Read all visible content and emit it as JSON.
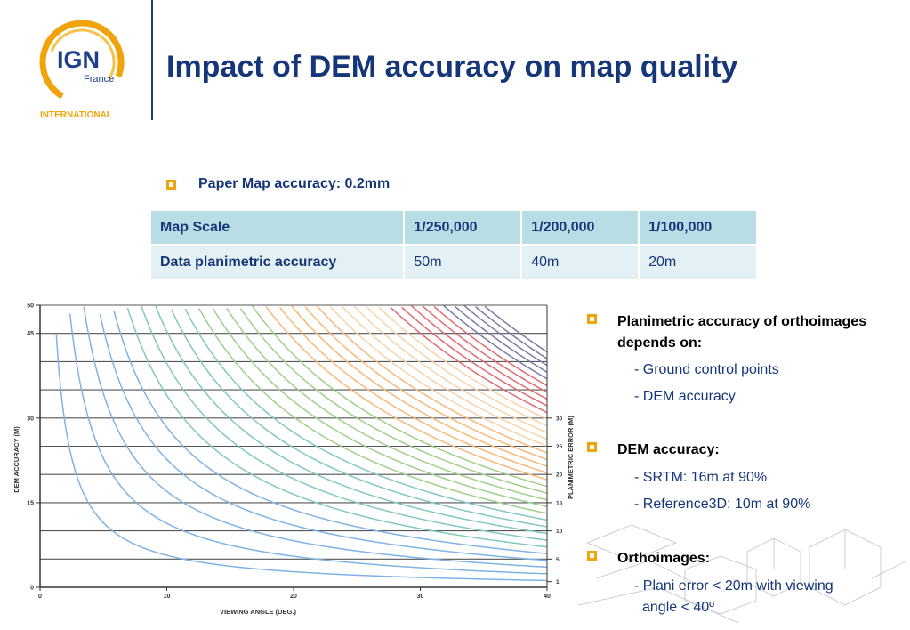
{
  "logo": {
    "brand": "IGN",
    "sub": "France",
    "tagline": "INTERNATIONAL"
  },
  "title": "Impact of DEM accuracy on map quality",
  "paper_bullet": "Paper Map accuracy: 0.2mm",
  "table": {
    "header": [
      "Map Scale",
      "1/250,000",
      "1/200,000",
      "1/100,000"
    ],
    "row": [
      "Data planimetric accuracy",
      "50m",
      "40m",
      "20m"
    ]
  },
  "right_bullets": [
    {
      "label_line1": "Planimetric accuracy of orthoimages",
      "label_line2": "depends on:",
      "items": [
        "Ground control points",
        "DEM accuracy"
      ]
    },
    {
      "label": "DEM accuracy:",
      "items": [
        "SRTM: 16m at 90%",
        "Reference3D: 10m at 90%"
      ]
    },
    {
      "label": "Orthoimages:",
      "items": [
        "Plani error < 20m with viewing",
        "angle < 40º"
      ]
    }
  ],
  "colors": {
    "accent": "#f0a30a",
    "navy": "#16367a",
    "table_head": "#b8dde4",
    "table_row": "#e3f1f4"
  },
  "chart_data": {
    "type": "line",
    "title": "",
    "xlabel": "VIEWING ANGLE (DEG.)",
    "ylabel": "DEM ACCURACY (M)",
    "y2label": "PLANIMETRIC ERROR (M)",
    "xlim": [
      0,
      40
    ],
    "ylim": [
      0,
      50
    ],
    "x_ticks": [
      0,
      10,
      20,
      30,
      40
    ],
    "y_ticks": [
      0,
      15,
      30,
      45,
      50
    ],
    "y2_ticks": [
      1,
      5,
      10,
      15,
      20,
      25,
      30
    ],
    "relation": "planimetric error = DEM accuracy × tan(viewing angle)",
    "series": [
      {
        "planimetric_error": 1,
        "color": "#7fb2e5"
      },
      {
        "planimetric_error": 2,
        "color": "#7fb2e5"
      },
      {
        "planimetric_error": 3,
        "color": "#7fb2e5"
      },
      {
        "planimetric_error": 4,
        "color": "#7fb2e5"
      },
      {
        "planimetric_error": 5,
        "color": "#7fb2e5"
      },
      {
        "planimetric_error": 6,
        "color": "#80c8c0"
      },
      {
        "planimetric_error": 7,
        "color": "#80c8c0"
      },
      {
        "planimetric_error": 8,
        "color": "#80c8c0"
      },
      {
        "planimetric_error": 9,
        "color": "#80c8c0"
      },
      {
        "planimetric_error": 10,
        "color": "#80c8c0"
      },
      {
        "planimetric_error": 11,
        "color": "#9fd08a"
      },
      {
        "planimetric_error": 12,
        "color": "#9fd08a"
      },
      {
        "planimetric_error": 13,
        "color": "#9fd08a"
      },
      {
        "planimetric_error": 14,
        "color": "#9fd08a"
      },
      {
        "planimetric_error": 15,
        "color": "#9fd08a"
      },
      {
        "planimetric_error": 16,
        "color": "#f7b878"
      },
      {
        "planimetric_error": 17,
        "color": "#f7b878"
      },
      {
        "planimetric_error": 18,
        "color": "#f7b878"
      },
      {
        "planimetric_error": 19,
        "color": "#f7b878"
      },
      {
        "planimetric_error": 20,
        "color": "#f7b878"
      },
      {
        "planimetric_error": 21,
        "color": "#f6d4a8"
      },
      {
        "planimetric_error": 22,
        "color": "#f6d4a8"
      },
      {
        "planimetric_error": 23,
        "color": "#f6d4a8"
      },
      {
        "planimetric_error": 24,
        "color": "#f6d4a8"
      },
      {
        "planimetric_error": 25,
        "color": "#f6d4a8"
      },
      {
        "planimetric_error": 26,
        "color": "#e06a70"
      },
      {
        "planimetric_error": 27,
        "color": "#e06a70"
      },
      {
        "planimetric_error": 28,
        "color": "#e06a70"
      },
      {
        "planimetric_error": 29,
        "color": "#e06a70"
      },
      {
        "planimetric_error": 30,
        "color": "#e06a70"
      },
      {
        "planimetric_error": 31,
        "color": "#7a7aa6"
      },
      {
        "planimetric_error": 32,
        "color": "#7a7aa6"
      },
      {
        "planimetric_error": 33,
        "color": "#7a7aa6"
      },
      {
        "planimetric_error": 34,
        "color": "#7a7aa6"
      },
      {
        "planimetric_error": 35,
        "color": "#7a7aa6"
      }
    ]
  }
}
